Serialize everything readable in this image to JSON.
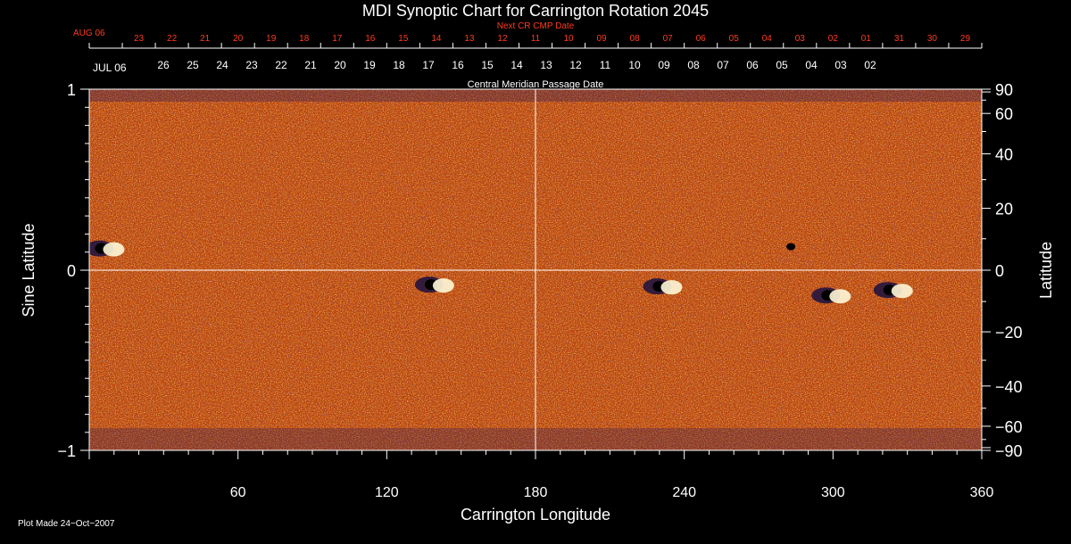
{
  "chart_data": {
    "type": "heatmap",
    "title": "MDI Synoptic Chart for Carrington Rotation 2045",
    "xlabel": "Carrington Longitude",
    "ylabel_left": "Sine Latitude",
    "ylabel_right": "Latitude",
    "xlim": [
      0,
      360
    ],
    "ylim": [
      -1,
      1
    ],
    "x_ticks": [
      "60",
      "120",
      "180",
      "240",
      "300",
      "360"
    ],
    "y_ticks_left": [
      {
        "value": 1,
        "label": "1"
      },
      {
        "value": 0,
        "label": "0"
      },
      {
        "value": -1,
        "label": "−1"
      }
    ],
    "y_ticks_right": [
      "90",
      "60",
      "40",
      "20",
      "0",
      "−20",
      "−40",
      "−60",
      "−90"
    ],
    "top_axis_label": "Central Meridian Passage Date",
    "next_cr_axis": {
      "label": "Next CR CMP Date",
      "start_label": "AUG 06",
      "dates": [
        "23",
        "22",
        "21",
        "20",
        "19",
        "18",
        "17",
        "16",
        "15",
        "14",
        "13",
        "12",
        "11",
        "10",
        "09",
        "08",
        "07",
        "06",
        "05",
        "04",
        "03",
        "02",
        "01",
        "31",
        "30",
        "29"
      ]
    },
    "cmp_axis": {
      "start_label": "JUL 06",
      "dates": [
        "26",
        "25",
        "24",
        "23",
        "22",
        "21",
        "20",
        "19",
        "18",
        "17",
        "16",
        "15",
        "14",
        "13",
        "12",
        "11",
        "10",
        "09",
        "08",
        "07",
        "06",
        "05",
        "04",
        "03",
        "02"
      ]
    },
    "active_regions": [
      {
        "lon": 7,
        "sinlat": 0.12,
        "polarity": "mixed"
      },
      {
        "lon": 140,
        "sinlat": -0.08,
        "polarity": "mixed"
      },
      {
        "lon": 232,
        "sinlat": -0.09,
        "polarity": "mixed"
      },
      {
        "lon": 283,
        "sinlat": 0.13,
        "polarity": "negative"
      },
      {
        "lon": 300,
        "sinlat": -0.14,
        "polarity": "mixed"
      },
      {
        "lon": 325,
        "sinlat": -0.11,
        "polarity": "mixed"
      }
    ],
    "colors": {
      "background": "#000000",
      "text": "#ffffff",
      "next_cr": "#ff3b1f",
      "field_base": "#e0620e"
    }
  },
  "footer": {
    "plot_made": "Plot Made 24−Oct−2007"
  }
}
